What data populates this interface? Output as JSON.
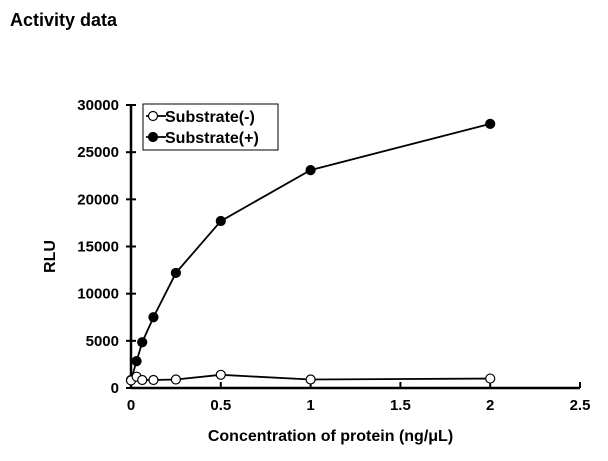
{
  "page_title": "Activity data",
  "chart_data": {
    "type": "line",
    "title": "Activity data",
    "xlabel": "Concentration of protein (ng/μL)",
    "ylabel": "RLU",
    "xlim": [
      0,
      2.5
    ],
    "ylim": [
      0,
      30000
    ],
    "xticks": [
      0,
      0.5,
      1,
      1.5,
      2,
      2.5
    ],
    "xtick_labels": [
      "0",
      "0.5",
      "1",
      "1.5",
      "2",
      "2.5"
    ],
    "yticks": [
      0,
      5000,
      10000,
      15000,
      20000,
      25000,
      30000
    ],
    "ytick_labels": [
      "0",
      "5000",
      "10000",
      "15000",
      "20000",
      "25000",
      "30000"
    ],
    "grid": false,
    "legend_position": "top-left",
    "series": [
      {
        "name": "Substrate(-)",
        "marker": "open-circle",
        "x": [
          0,
          0.03125,
          0.0625,
          0.125,
          0.25,
          0.5,
          1,
          2
        ],
        "y": [
          800,
          1200,
          850,
          850,
          900,
          1400,
          900,
          1000
        ]
      },
      {
        "name": "Substrate(+)",
        "marker": "filled-circle",
        "x": [
          0,
          0.03125,
          0.0625,
          0.125,
          0.25,
          0.5,
          1,
          2
        ],
        "y": [
          850,
          2850,
          4850,
          7500,
          12200,
          17700,
          23100,
          28000
        ]
      }
    ]
  }
}
